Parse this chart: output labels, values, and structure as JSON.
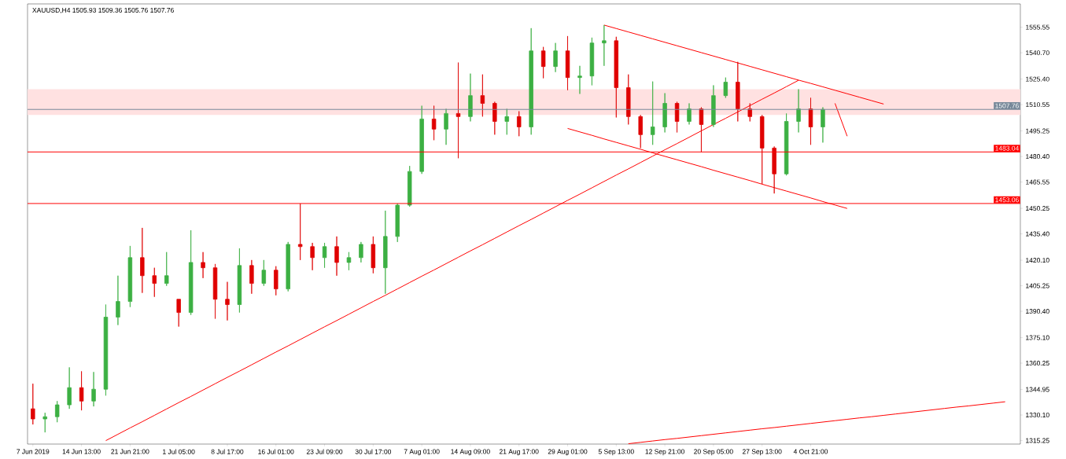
{
  "chart_data": {
    "type": "candlestick",
    "title": "XAUUSD,H4  1505.93 1509.36 1505.76 1507.76",
    "categories": [
      "7 Jun 2019",
      null,
      null,
      null,
      "14 Jun 13:00",
      null,
      null,
      null,
      "21 Jun 21:00",
      null,
      null,
      null,
      "1 Jul 05:00",
      null,
      null,
      null,
      "8 Jul 17:00",
      null,
      null,
      null,
      "16 Jul 01:00",
      null,
      null,
      null,
      "23 Jul 09:00",
      null,
      null,
      null,
      "30 Jul 17:00",
      null,
      null,
      null,
      "7 Aug 01:00",
      null,
      null,
      null,
      "14 Aug 09:00",
      null,
      null,
      null,
      "21 Aug 17:00",
      null,
      null,
      null,
      "29 Aug 01:00",
      null,
      null,
      null,
      "5 Sep 13:00",
      null,
      null,
      null,
      "12 Sep 21:00",
      null,
      null,
      null,
      "20 Sep 05:00",
      null,
      null,
      null,
      "27 Sep 13:00",
      null,
      null,
      null,
      "4 Oct 21:00",
      null,
      null,
      null,
      null,
      null,
      null,
      null,
      null,
      null,
      null,
      null,
      null,
      null,
      null,
      null,
      null,
      null
    ],
    "ohlc": [
      [
        1333.7,
        1348.3,
        1324.6,
        1327.8
      ],
      [
        1327.8,
        1331.4,
        1320.0,
        1329.1
      ],
      [
        1329.1,
        1338.2,
        1325.9,
        1336.0
      ],
      [
        1336.0,
        1357.8,
        1333.7,
        1346.0
      ],
      [
        1346.0,
        1355.5,
        1332.8,
        1338.2
      ],
      [
        1338.2,
        1355.1,
        1335.1,
        1345.1
      ],
      [
        1345.1,
        1394.3,
        1341.4,
        1387.0
      ],
      [
        1387.0,
        1411.1,
        1382.4,
        1396.1
      ],
      [
        1396.1,
        1428.4,
        1392.9,
        1421.6
      ],
      [
        1421.6,
        1438.9,
        1401.1,
        1411.1
      ],
      [
        1411.1,
        1415.7,
        1398.8,
        1406.6
      ],
      [
        1406.6,
        1424.8,
        1405.2,
        1411.1
      ],
      [
        1397.4,
        1397.4,
        1381.5,
        1389.7
      ],
      [
        1389.7,
        1437.5,
        1388.3,
        1418.8
      ],
      [
        1418.8,
        1424.8,
        1409.7,
        1415.7
      ],
      [
        1415.7,
        1417.9,
        1386.1,
        1397.4
      ],
      [
        1397.4,
        1407.5,
        1385.1,
        1394.3
      ],
      [
        1394.3,
        1427.0,
        1389.7,
        1417.0
      ],
      [
        1417.0,
        1420.2,
        1400.6,
        1406.6
      ],
      [
        1406.6,
        1420.2,
        1405.2,
        1414.3
      ],
      [
        1414.3,
        1416.6,
        1399.7,
        1403.4
      ],
      [
        1403.4,
        1430.7,
        1402.0,
        1429.3
      ],
      [
        1429.3,
        1453.0,
        1420.2,
        1428.0
      ],
      [
        1428.0,
        1430.2,
        1414.3,
        1421.6
      ],
      [
        1421.6,
        1430.2,
        1415.7,
        1428.0
      ],
      [
        1428.0,
        1433.9,
        1411.1,
        1418.8
      ],
      [
        1418.8,
        1424.8,
        1414.3,
        1421.6
      ],
      [
        1421.6,
        1430.7,
        1418.8,
        1429.3
      ],
      [
        1429.3,
        1433.9,
        1412.5,
        1415.7
      ],
      [
        1415.7,
        1448.9,
        1400.6,
        1433.9
      ],
      [
        1433.9,
        1453.0,
        1430.7,
        1452.1
      ],
      [
        1452.1,
        1474.9,
        1451.2,
        1471.7
      ],
      [
        1471.7,
        1509.9,
        1470.3,
        1502.2
      ],
      [
        1502.2,
        1509.9,
        1489.9,
        1496.3
      ],
      [
        1496.3,
        1508.1,
        1487.2,
        1505.4
      ],
      [
        1505.4,
        1535.0,
        1479.4,
        1503.6
      ],
      [
        1503.6,
        1528.6,
        1500.8,
        1515.8
      ],
      [
        1515.8,
        1528.1,
        1503.6,
        1511.3
      ],
      [
        1511.3,
        1512.2,
        1493.1,
        1500.8
      ],
      [
        1500.8,
        1508.1,
        1493.1,
        1503.6
      ],
      [
        1503.6,
        1506.7,
        1492.2,
        1497.6
      ],
      [
        1497.6,
        1555.0,
        1493.1,
        1541.8
      ],
      [
        1541.8,
        1544.1,
        1525.9,
        1532.7
      ],
      [
        1532.7,
        1546.4,
        1529.5,
        1541.8
      ],
      [
        1541.8,
        1550.4,
        1519.0,
        1526.3
      ],
      [
        1526.3,
        1533.1,
        1516.8,
        1527.2
      ],
      [
        1527.2,
        1549.5,
        1521.8,
        1546.4
      ],
      [
        1546.4,
        1556.8,
        1533.1,
        1547.7
      ],
      [
        1547.7,
        1550.0,
        1503.1,
        1520.4
      ],
      [
        1520.4,
        1528.1,
        1499.0,
        1503.6
      ],
      [
        1503.6,
        1504.5,
        1485.3,
        1493.1
      ],
      [
        1493.1,
        1524.0,
        1487.2,
        1497.6
      ],
      [
        1497.6,
        1517.2,
        1494.4,
        1511.3
      ],
      [
        1511.3,
        1512.2,
        1494.4,
        1500.8
      ],
      [
        1500.8,
        1511.3,
        1499.0,
        1508.1
      ],
      [
        1508.1,
        1509.0,
        1483.1,
        1499.0
      ],
      [
        1499.0,
        1521.8,
        1497.6,
        1515.8
      ],
      [
        1515.8,
        1526.3,
        1514.5,
        1523.6
      ],
      [
        1523.6,
        1535.4,
        1500.8,
        1508.1
      ],
      [
        1508.1,
        1511.3,
        1500.8,
        1503.6
      ],
      [
        1503.6,
        1504.5,
        1464.4,
        1485.3
      ],
      [
        1485.3,
        1486.2,
        1458.9,
        1470.3
      ],
      [
        1470.3,
        1505.4,
        1469.4,
        1500.8
      ],
      [
        1500.8,
        1519.5,
        1494.4,
        1508.1
      ],
      [
        1508.1,
        1514.5,
        1487.2,
        1497.6
      ],
      [
        1497.6,
        1509.0,
        1488.5,
        1507.76
      ],
      null,
      null,
      null,
      null,
      null,
      null,
      null,
      null,
      null,
      null,
      null,
      null,
      null,
      null,
      null,
      null
    ],
    "colors": [
      "#e00000",
      "#3cb043",
      "#3cb043",
      "#3cb043",
      "#e00000",
      "#3cb043",
      "#3cb043",
      "#3cb043",
      "#3cb043",
      "#e00000",
      "#e00000",
      "#3cb043",
      "#e00000",
      "#3cb043",
      "#e00000",
      "#e00000",
      "#e00000",
      "#3cb043",
      "#e00000",
      "#3cb043",
      "#e00000",
      "#3cb043",
      "#e00000",
      "#e00000",
      "#3cb043",
      "#e00000",
      "#3cb043",
      "#3cb043",
      "#e00000",
      "#3cb043",
      "#3cb043",
      "#3cb043",
      "#3cb043",
      "#e00000",
      "#3cb043",
      "#e00000",
      "#3cb043",
      "#e00000",
      "#e00000",
      "#3cb043",
      "#e00000",
      "#3cb043",
      "#e00000",
      "#3cb043",
      "#e00000",
      "#3cb043",
      "#3cb043",
      "#3cb043",
      "#e00000",
      "#e00000",
      "#e00000",
      "#3cb043",
      "#3cb043",
      "#e00000",
      "#3cb043",
      "#e00000",
      "#3cb043",
      "#3cb043",
      "#e00000",
      "#e00000",
      "#e00000",
      "#e00000",
      "#3cb043",
      "#3cb043",
      "#e00000",
      "#3cb043",
      null,
      null,
      null,
      null,
      null,
      null,
      null,
      null,
      null,
      null,
      null,
      null,
      null,
      null,
      null,
      null
    ],
    "series": [
      {
        "type": "line",
        "color": "#ff0000",
        "values": [
          null,
          null,
          null,
          null,
          null,
          null,
          1315.2,
          1318.9,
          1322.6,
          1326.2,
          1329.9,
          1333.6,
          1337.3,
          1340.9,
          1344.6,
          1348.3,
          1352.0,
          1355.6,
          1359.3,
          1363.0,
          1366.7,
          1370.3,
          1374.0,
          1377.7,
          1381.4,
          1385.0,
          1388.7,
          1392.4,
          1396.1,
          1399.7,
          1403.4,
          1407.1,
          1410.8,
          1414.4,
          1418.1,
          1421.8,
          1425.5,
          1429.1,
          1432.8,
          1436.5,
          1440.2,
          1443.8,
          1447.5,
          1451.2,
          1454.9,
          1458.5,
          1462.2,
          1465.9,
          1469.6,
          1473.2,
          1476.9,
          1480.6,
          1484.3,
          1487.9,
          1491.6,
          1495.3,
          1499.0,
          1502.6,
          1506.3,
          1510.0,
          1513.7,
          1517.3,
          1521.0,
          1524.7,
          null,
          null,
          null,
          null,
          null,
          null,
          null,
          null,
          null,
          null,
          null,
          null,
          null,
          null,
          null,
          null,
          null,
          null
        ]
      },
      {
        "type": "line",
        "color": "#ff0000",
        "values": [
          null,
          null,
          null,
          null,
          null,
          null,
          null,
          null,
          null,
          null,
          null,
          null,
          null,
          null,
          null,
          null,
          null,
          null,
          null,
          null,
          null,
          null,
          null,
          null,
          null,
          null,
          null,
          null,
          null,
          null,
          null,
          null,
          null,
          null,
          null,
          null,
          null,
          null,
          null,
          null,
          null,
          null,
          null,
          null,
          null,
          null,
          null,
          1556.8,
          1554.8,
          1552.8,
          1550.8,
          1548.8,
          1546.8,
          1544.8,
          1542.8,
          1540.8,
          1538.8,
          1536.8,
          1534.8,
          1532.8,
          1530.8,
          1528.8,
          1526.8,
          1524.8,
          1522.9,
          1520.9,
          1518.9,
          1516.9,
          1514.9,
          1512.9,
          1510.9,
          null,
          null,
          null,
          null,
          null,
          null,
          null,
          null,
          null,
          null,
          null
        ]
      },
      {
        "type": "line",
        "color": "#ff0000",
        "values": [
          null,
          null,
          null,
          null,
          null,
          null,
          null,
          null,
          null,
          null,
          null,
          null,
          null,
          null,
          null,
          null,
          null,
          null,
          null,
          null,
          null,
          null,
          null,
          null,
          null,
          null,
          null,
          null,
          null,
          null,
          null,
          null,
          null,
          null,
          null,
          null,
          null,
          null,
          null,
          null,
          null,
          null,
          null,
          null,
          1496.7,
          1494.7,
          1492.7,
          1490.6,
          1488.6,
          1486.6,
          1484.6,
          1482.5,
          1480.5,
          1478.5,
          1476.5,
          1474.5,
          1472.4,
          1470.4,
          1468.4,
          1466.4,
          1464.3,
          1462.3,
          1460.3,
          1458.3,
          1456.3,
          1454.2,
          1452.2,
          1450.2,
          null,
          null,
          null,
          null,
          null,
          null,
          null,
          null,
          null,
          null,
          null,
          null,
          null,
          null
        ]
      },
      {
        "type": "line",
        "color": "#ff0000",
        "values": [
          null,
          null,
          null,
          null,
          null,
          null,
          null,
          null,
          null,
          null,
          null,
          null,
          null,
          null,
          null,
          null,
          null,
          null,
          null,
          null,
          null,
          null,
          null,
          null,
          null,
          null,
          null,
          null,
          null,
          null,
          null,
          null,
          null,
          null,
          null,
          null,
          null,
          null,
          null,
          null,
          null,
          null,
          null,
          null,
          null,
          null,
          null,
          null,
          null,
          1313.4,
          1314.2,
          1315.0,
          1315.8,
          1316.5,
          1317.3,
          1318.1,
          1318.9,
          1319.7,
          1320.5,
          1321.3,
          1322.1,
          1322.8,
          1323.6,
          1324.4,
          1325.2,
          1326.0,
          1326.8,
          1327.6,
          1328.4,
          1329.1,
          1329.9,
          1330.7,
          1331.5,
          1332.3,
          1333.1,
          1333.9,
          1334.7,
          1335.4,
          1336.2,
          1337.0,
          1337.8,
          null
        ]
      },
      {
        "type": "line",
        "color": "#ff0000",
        "values": [
          null,
          null,
          null,
          null,
          null,
          null,
          null,
          null,
          null,
          null,
          null,
          null,
          null,
          null,
          null,
          null,
          null,
          null,
          null,
          null,
          null,
          null,
          null,
          null,
          null,
          null,
          null,
          null,
          null,
          null,
          null,
          null,
          null,
          null,
          null,
          null,
          null,
          null,
          null,
          null,
          null,
          null,
          null,
          null,
          null,
          null,
          null,
          null,
          null,
          null,
          null,
          null,
          null,
          null,
          null,
          null,
          null,
          null,
          null,
          null,
          null,
          null,
          null,
          null,
          null,
          null,
          1511.3,
          1492.2,
          null,
          null,
          null,
          null,
          null,
          null,
          null,
          null,
          null,
          null,
          null,
          null,
          null,
          null
        ]
      }
    ],
    "bands": [
      {
        "axis": "y",
        "from": 1504.5,
        "to": 1519.5,
        "color": "#ffe1e1"
      }
    ],
    "ylim": [
      1313.2,
      1569.1
    ],
    "yticks": [
      {
        "value": 1315.25,
        "label": "1315.25"
      },
      {
        "value": 1330.1,
        "label": "1330.10"
      },
      {
        "value": 1344.95,
        "label": "1344.95"
      },
      {
        "value": 1360.25,
        "label": "1360.25"
      },
      {
        "value": 1375.1,
        "label": "1375.10"
      },
      {
        "value": 1390.4,
        "label": "1390.40"
      },
      {
        "value": 1405.25,
        "label": "1405.25"
      },
      {
        "value": 1420.1,
        "label": "1420.10"
      },
      {
        "value": 1435.4,
        "label": "1435.40"
      },
      {
        "value": 1450.25,
        "label": "1450.25"
      },
      {
        "value": 1465.55,
        "label": "1465.55"
      },
      {
        "value": 1480.4,
        "label": "1480.40"
      },
      {
        "value": 1495.25,
        "label": "1495.25"
      },
      {
        "value": 1510.55,
        "label": "1510.55"
      },
      {
        "value": 1525.4,
        "label": "1525.40"
      },
      {
        "value": 1540.7,
        "label": "1540.70"
      },
      {
        "value": 1555.55,
        "label": "1555.55"
      }
    ],
    "ref_lines": [
      {
        "axis": "y",
        "value": 1507.76,
        "label": "1507.76",
        "color": "#778899"
      },
      {
        "axis": "y",
        "value": 1483.04,
        "label": "1483.04",
        "color": "#ff0000"
      },
      {
        "axis": "y",
        "value": 1453.06,
        "label": "1453.06",
        "color": "#ff0000"
      }
    ]
  }
}
